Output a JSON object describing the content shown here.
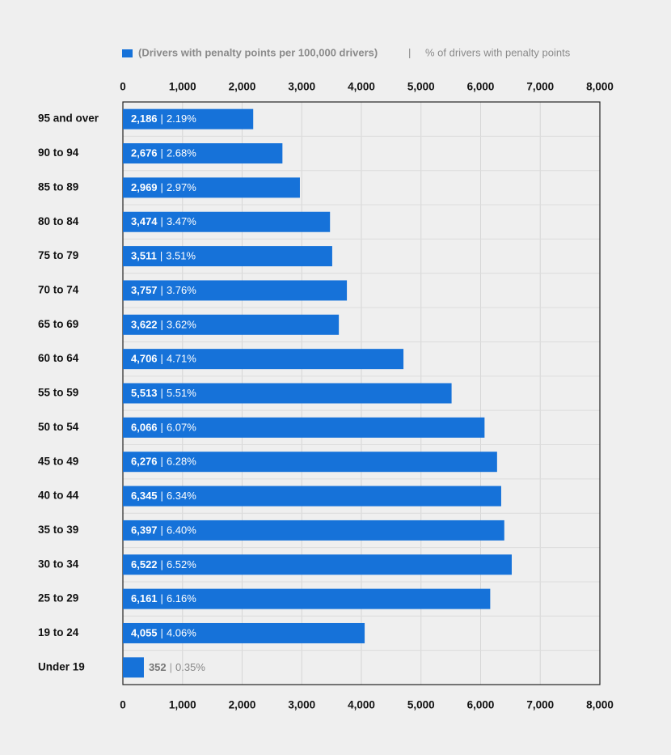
{
  "chart_data": {
    "type": "bar",
    "orientation": "horizontal",
    "separator": "|",
    "categories": [
      "95 and over",
      "90 to 94",
      "85 to 89",
      "80 to 84",
      "75 to 79",
      "70 to 74",
      "65 to 69",
      "60 to 64",
      "55 to 59",
      "50 to 54",
      "45 to 49",
      "40 to 44",
      "35 to 39",
      "30 to 34",
      "25 to 29",
      "19 to 24",
      "Under 19"
    ],
    "series": [
      {
        "name": "(Drivers with penalty points per 100,000 drivers)",
        "color": "#1672d9",
        "values": [
          2186,
          2676,
          2969,
          3474,
          3511,
          3757,
          3622,
          4706,
          5513,
          6066,
          6276,
          6345,
          6397,
          6522,
          6161,
          4055,
          352
        ],
        "value_labels": [
          "2,186",
          "2,676",
          "2,969",
          "3,474",
          "3,511",
          "3,757",
          "3,622",
          "4,706",
          "5,513",
          "6,066",
          "6,276",
          "6,345",
          "6,397",
          "6,522",
          "6,161",
          "4,055",
          "352"
        ]
      },
      {
        "name": "% of drivers with penalty points",
        "type": "text",
        "color": "#888888",
        "values": [
          2.19,
          2.68,
          2.97,
          3.47,
          3.51,
          3.76,
          3.62,
          4.71,
          5.51,
          6.07,
          6.28,
          6.34,
          6.4,
          6.52,
          6.16,
          4.06,
          0.35
        ],
        "value_labels": [
          "2.19%",
          "2.68%",
          "2.97%",
          "3.47%",
          "3.51%",
          "3.76%",
          "3.62%",
          "4.71%",
          "5.51%",
          "6.07%",
          "6.28%",
          "6.34%",
          "6.40%",
          "6.52%",
          "6.16%",
          "4.06%",
          "0.35%"
        ]
      }
    ],
    "xlim": [
      0,
      8000
    ],
    "xticks": [
      0,
      {
        "value": 1000,
        "label": "1,000"
      },
      {
        "value": 2000,
        "label": "2,000"
      },
      {
        "value": 3000,
        "label": "3,000"
      },
      {
        "value": 4000,
        "label": "4,000"
      },
      {
        "value": 5000,
        "label": "5,000"
      },
      {
        "value": 6000,
        "label": "6,000"
      },
      {
        "value": 7000,
        "label": "7,000"
      },
      {
        "value": 8000,
        "label": "8,000"
      }
    ],
    "grid": true
  }
}
